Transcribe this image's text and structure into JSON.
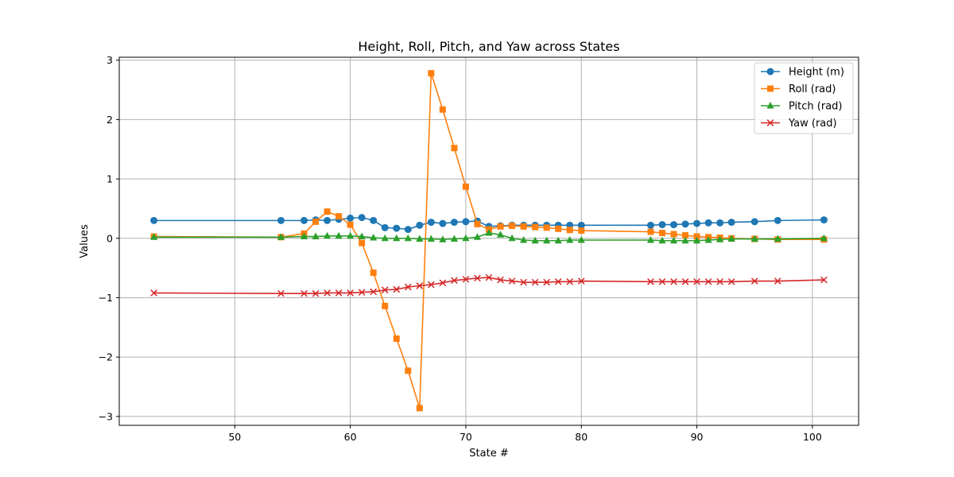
{
  "chart_data": {
    "type": "line",
    "title": "Height, Roll, Pitch, and Yaw across States",
    "xlabel": "State #",
    "ylabel": "Values",
    "xlim": [
      40,
      104
    ],
    "ylim": [
      -3.15,
      3.05
    ],
    "xticks": [
      50,
      60,
      70,
      80,
      90,
      100
    ],
    "yticks": [
      -3,
      -2,
      -1,
      0,
      1,
      2,
      3
    ],
    "xtick_labels": [
      "50",
      "60",
      "70",
      "80",
      "90",
      "100"
    ],
    "ytick_labels": [
      "−3",
      "−2",
      "−1",
      "0",
      "1",
      "2",
      "3"
    ],
    "grid": true,
    "legend_position": "top-right",
    "x": [
      43,
      54,
      56,
      57,
      58,
      59,
      60,
      61,
      62,
      63,
      64,
      65,
      66,
      67,
      68,
      69,
      70,
      71,
      72,
      73,
      74,
      75,
      76,
      77,
      78,
      79,
      80,
      86,
      87,
      88,
      89,
      90,
      91,
      92,
      93,
      95,
      97,
      101
    ],
    "series": [
      {
        "name": "Height (m)",
        "color": "#1f77b4",
        "marker": "circle",
        "values": [
          0.3,
          0.3,
          0.3,
          0.31,
          0.3,
          0.32,
          0.34,
          0.35,
          0.3,
          0.18,
          0.17,
          0.15,
          0.22,
          0.27,
          0.25,
          0.27,
          0.28,
          0.29,
          0.2,
          0.21,
          0.22,
          0.22,
          0.22,
          0.22,
          0.22,
          0.22,
          0.22,
          0.22,
          0.23,
          0.23,
          0.24,
          0.25,
          0.26,
          0.26,
          0.27,
          0.28,
          0.3,
          0.31
        ]
      },
      {
        "name": "Roll (rad)",
        "color": "#ff7f0e",
        "marker": "square",
        "values": [
          0.03,
          0.02,
          0.08,
          0.28,
          0.45,
          0.37,
          0.23,
          -0.08,
          -0.58,
          -1.14,
          -1.69,
          -2.23,
          -2.86,
          2.78,
          2.17,
          1.52,
          0.87,
          0.24,
          0.15,
          0.2,
          0.21,
          0.2,
          0.19,
          0.18,
          0.16,
          0.14,
          0.13,
          0.11,
          0.09,
          0.07,
          0.05,
          0.03,
          0.02,
          0.01,
          0.0,
          -0.01,
          -0.02,
          -0.02
        ]
      },
      {
        "name": "Pitch (rad)",
        "color": "#2ca02c",
        "marker": "triangle",
        "values": [
          0.02,
          0.02,
          0.03,
          0.03,
          0.04,
          0.04,
          0.04,
          0.03,
          0.01,
          0.0,
          0.0,
          0.0,
          -0.01,
          -0.01,
          -0.02,
          -0.01,
          0.0,
          0.02,
          0.09,
          0.06,
          0.0,
          -0.03,
          -0.04,
          -0.04,
          -0.04,
          -0.03,
          -0.03,
          -0.03,
          -0.04,
          -0.04,
          -0.04,
          -0.04,
          -0.03,
          -0.02,
          -0.01,
          -0.01,
          -0.01,
          0.0
        ]
      },
      {
        "name": "Yaw (rad)",
        "color": "#d62728",
        "marker": "x",
        "values": [
          -0.92,
          -0.93,
          -0.93,
          -0.93,
          -0.92,
          -0.92,
          -0.92,
          -0.91,
          -0.9,
          -0.87,
          -0.86,
          -0.82,
          -0.8,
          -0.78,
          -0.75,
          -0.71,
          -0.69,
          -0.67,
          -0.66,
          -0.7,
          -0.72,
          -0.74,
          -0.74,
          -0.74,
          -0.73,
          -0.73,
          -0.72,
          -0.73,
          -0.73,
          -0.73,
          -0.73,
          -0.73,
          -0.73,
          -0.73,
          -0.73,
          -0.72,
          -0.72,
          -0.7
        ]
      }
    ]
  }
}
